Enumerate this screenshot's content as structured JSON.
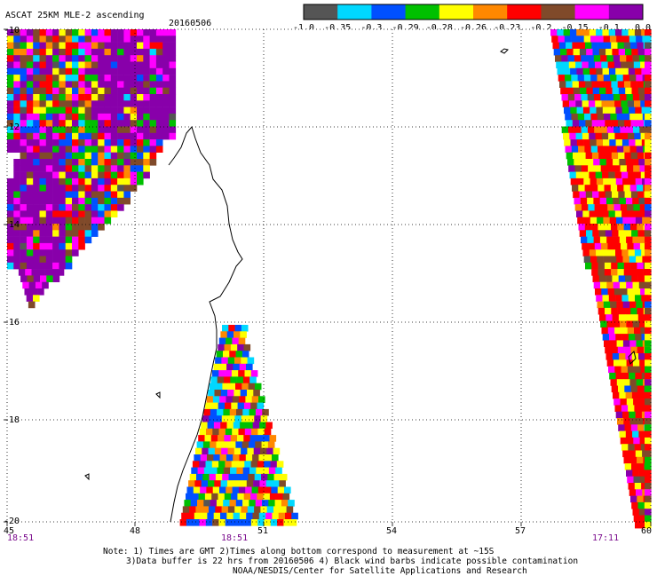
{
  "header": {
    "title": "ASCAT 25KM MLE-2 ascending",
    "date": "20160506"
  },
  "colorbar": {
    "colors": [
      "#555555",
      "#00d8ff",
      "#0050ff",
      "#00c000",
      "#ffff00",
      "#ff8800",
      "#ff0000",
      "#804a2a",
      "#ff00ff",
      "#8800aa"
    ],
    "labels": [
      "-1.0",
      "-0.35",
      "-0.3",
      "-0.29",
      "-0.28",
      "-0.26",
      "-0.23",
      "-0.2",
      "-0.15",
      "-0.1",
      "0.0"
    ]
  },
  "axes": {
    "lon_ticks": [
      "45",
      "48",
      "51",
      "54",
      "57",
      "60"
    ],
    "lat_ticks": [
      "-10",
      "-12",
      "-14",
      "-16",
      "-18",
      "-20"
    ],
    "lon_range": [
      45,
      60
    ],
    "lat_range": [
      -20,
      -10
    ],
    "grid": true
  },
  "times": [
    "18:51",
    "18:51",
    "17:11"
  ],
  "notes": {
    "line1": "Note: 1) Times are GMT 2)Times along bottom correspond to measurement at ~15S",
    "line2": "3)Data buffer is 22 hrs from 20160506 4) Black wind barbs indicate possible contamination",
    "line3": "NOAA/NESDIS/Center for Satellite Applications and Research"
  }
}
